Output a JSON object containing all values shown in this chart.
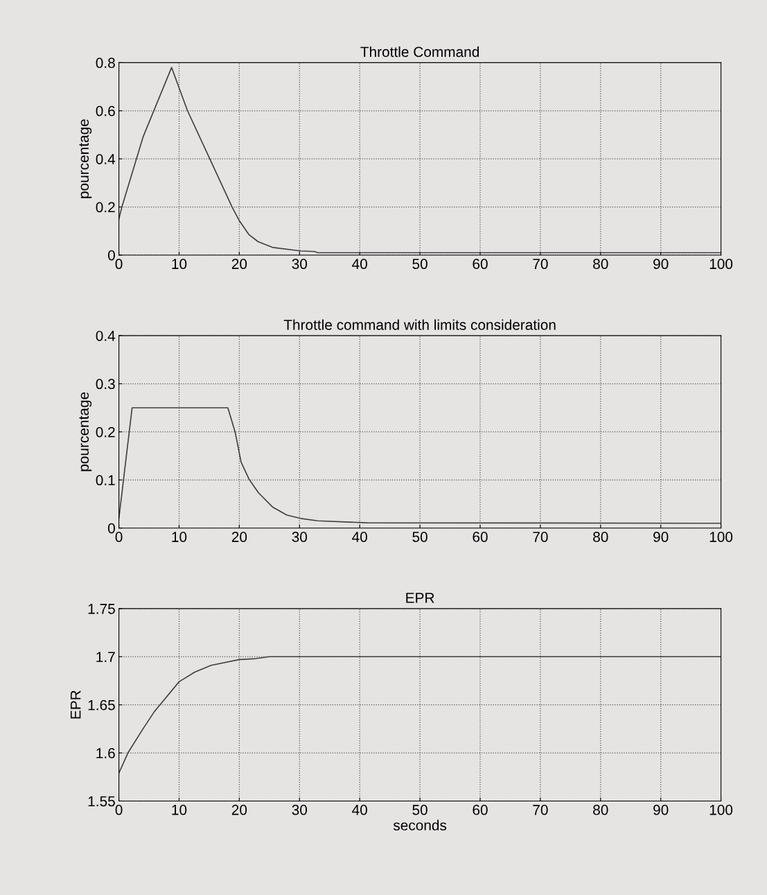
{
  "chart_data": [
    {
      "type": "line",
      "title": "Throttle Command",
      "ylabel": "pourcentage",
      "xlim": [
        0,
        100
      ],
      "ylim": [
        0,
        0.8
      ],
      "xticks": [
        0,
        10,
        20,
        30,
        40,
        50,
        60,
        70,
        80,
        90,
        100
      ],
      "yticks": [
        0,
        0.2,
        0.4,
        0.6,
        0.8
      ],
      "grid": true,
      "series": [
        {
          "color": "#404040",
          "x": [
            0,
            0.5,
            4,
            8.75,
            11.4,
            15.1,
            18.8,
            20,
            21.6,
            23.1,
            25.5,
            30.2,
            32.5,
            33,
            100
          ],
          "values": [
            0.15,
            0.2,
            0.49,
            0.78,
            0.6,
            0.4,
            0.2,
            0.143,
            0.085,
            0.056,
            0.032,
            0.017,
            0.015,
            0.01,
            0.01
          ]
        }
      ]
    },
    {
      "type": "line",
      "title": "Throttle command with limits consideration",
      "ylabel": "pourcentage",
      "xlim": [
        0,
        100
      ],
      "ylim": [
        0,
        0.4
      ],
      "xticks": [
        0,
        10,
        20,
        30,
        40,
        50,
        60,
        70,
        80,
        90,
        100
      ],
      "yticks": [
        0,
        0.1,
        0.2,
        0.3,
        0.4
      ],
      "grid": true,
      "series": [
        {
          "color": "#404040",
          "x": [
            0,
            2.2,
            18.1,
            19.3,
            20.3,
            21.6,
            23.2,
            25.5,
            27.9,
            30.2,
            33,
            41.2,
            100
          ],
          "values": [
            0.02,
            0.25,
            0.25,
            0.2,
            0.137,
            0.102,
            0.073,
            0.044,
            0.027,
            0.02,
            0.015,
            0.011,
            0.01
          ]
        }
      ]
    },
    {
      "type": "line",
      "title": "EPR",
      "ylabel": "EPR",
      "xlabel": "seconds",
      "xlim": [
        0,
        100
      ],
      "ylim": [
        1.55,
        1.75
      ],
      "xticks": [
        0,
        10,
        20,
        30,
        40,
        50,
        60,
        70,
        80,
        90,
        100
      ],
      "yticks": [
        1.55,
        1.6,
        1.65,
        1.7,
        1.75
      ],
      "grid": true,
      "series": [
        {
          "color": "#404040",
          "x": [
            0,
            1.5,
            4,
            5.9,
            6.7,
            10,
            12.6,
            15.3,
            20,
            22.7,
            25,
            100
          ],
          "values": [
            1.579,
            1.6,
            1.625,
            1.643,
            1.649,
            1.674,
            1.684,
            1.691,
            1.697,
            1.698,
            1.7,
            1.7
          ]
        }
      ]
    }
  ]
}
